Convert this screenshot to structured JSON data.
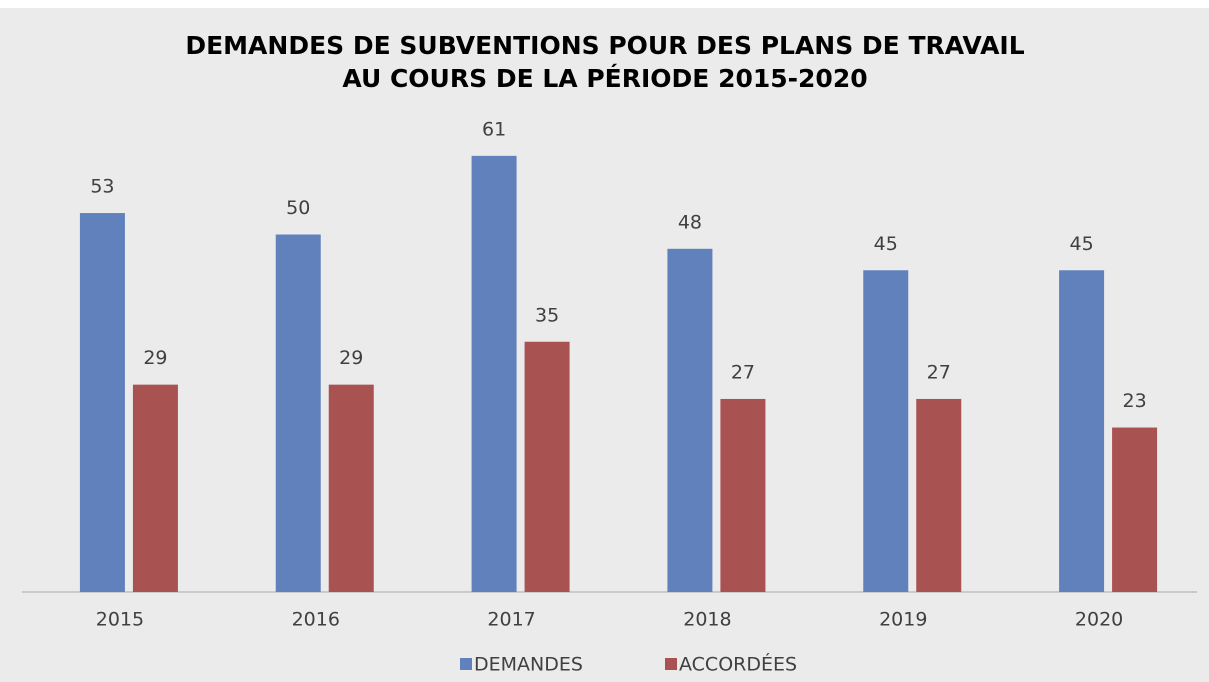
{
  "chart_data": {
    "type": "bar",
    "title": [
      "DEMANDES DE SUBVENTIONS POUR DES PLANS DE TRAVAIL",
      "AU COURS DE LA PÉRIODE 2015-2020"
    ],
    "categories": [
      "2015",
      "2016",
      "2017",
      "2018",
      "2019",
      "2020"
    ],
    "series": [
      {
        "name": "DEMANDES",
        "color": "#6181bd",
        "values": [
          53,
          50,
          61,
          48,
          45,
          45
        ]
      },
      {
        "name": "ACCORDÉES",
        "color": "#a85252",
        "values": [
          29,
          29,
          35,
          27,
          27,
          23
        ]
      }
    ],
    "legend": "bottom"
  }
}
